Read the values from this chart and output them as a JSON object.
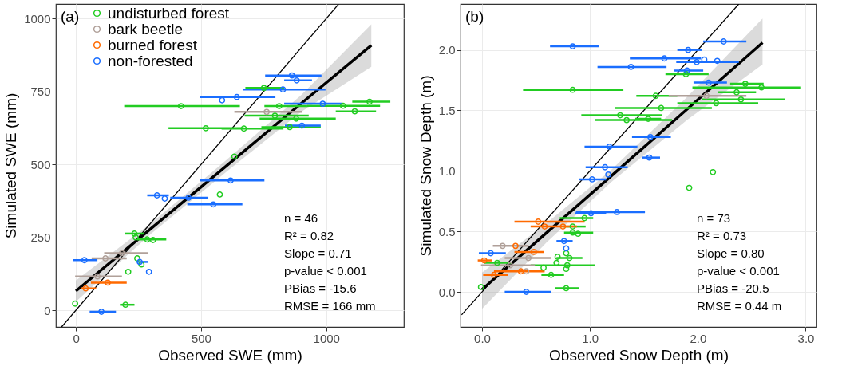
{
  "chart_data": [
    {
      "type": "scatter",
      "xlabel": "Observed SWE (mm)",
      "ylabel": "Simulated SWE (mm)",
      "xlim": [
        -80,
        1310
      ],
      "ylim": [
        -57,
        1050
      ],
      "xticks": [
        0,
        500,
        1000
      ],
      "yticks": [
        0,
        250,
        500,
        750,
        1000
      ],
      "grid": true,
      "legend": "top left",
      "marker": "circle",
      "annotations": [
        "(a)",
        "n = 46",
        "R² = 0.82",
        "Slope = 0.71",
        "p-value < 0.001",
        "PBias = -15.6",
        "RMSE = 166 mm"
      ],
      "series": [
        {
          "name": "undisturbed forest",
          "color": "#22cc22",
          "x": [
            751,
            420,
            812,
            1067,
            1173,
            1114,
            795,
            880,
            519,
            671,
            854,
            633,
            575,
            234,
            239,
            285,
            308,
            245,
            262,
            209,
            -3,
            198
          ],
          "values": [
            762,
            700,
            700,
            701,
            715,
            682,
            667,
            657,
            624,
            623,
            628,
            527,
            397,
            263,
            250,
            243,
            241,
            178,
            157,
            132,
            23,
            19
          ],
          "xerrors": [
            [
              677,
              832
            ],
            [
              193,
              655
            ],
            [
              753,
              924
            ],
            [
              924,
              1215
            ],
            [
              1104,
              1256
            ],
            [
              1038,
              1199
            ],
            [
              674,
              930
            ],
            [
              734,
              1038
            ],
            [
              370,
              671
            ],
            [
              582,
              829
            ],
            [
              741,
              978
            ],
            null,
            null,
            [
              197,
              271
            ],
            null,
            [
              245,
              361
            ],
            null,
            null,
            null,
            null,
            null,
            [
              176,
              234
            ]
          ]
        },
        {
          "name": "bark beetle",
          "color": "#b0a099",
          "x": [
            762,
            184,
            118,
            86
          ],
          "values": [
            680,
            196,
            178,
            116
          ],
          "xerrors": [
            [
              633,
              905
            ],
            [
              113,
              287
            ],
            [
              63,
              203
            ],
            [
              -3,
              184
            ]
          ]
        },
        {
          "name": "burned forest",
          "color": "#ff6a00",
          "x": [
            127,
            39
          ],
          "values": [
            95,
            75
          ],
          "xerrors": [
            [
              60,
              203
            ],
            [
              21,
              81
            ]
          ]
        },
        {
          "name": "non-forested",
          "color": "#1a6eff",
          "x": [
            863,
            882,
            827,
            643,
            584,
            986,
            903,
            618,
            324,
            355,
            450,
            549,
            34,
            255,
            292,
            102
          ],
          "values": [
            805,
            788,
            757,
            731,
            720,
            708,
            633,
            445,
            394,
            383,
            386,
            363,
            172,
            166,
            132,
            -5
          ],
          "xerrors": [
            [
              756,
              981
            ],
            [
              832,
              943
            ],
            [
              668,
              997
            ],
            [
              497,
              797
            ],
            null,
            [
              832,
              1063
            ],
            [
              835,
              978
            ],
            [
              496,
              753
            ],
            [
              285,
              371
            ],
            null,
            [
              377,
              529
            ],
            [
              445,
              665
            ],
            [
              -11,
              86
            ],
            [
              245,
              287
            ],
            null,
            [
              55,
              160
            ]
          ]
        },
        {
          "type": "line",
          "marker": "none",
          "color": "#000000",
          "x": [
            -57,
            1049
          ],
          "values": [
            -57,
            1049
          ]
        },
        {
          "type": "line",
          "marker": "none",
          "color": "#000000",
          "x": [
            0,
            300,
            600,
            900,
            1180
          ],
          "values": [
            66,
            280,
            494,
            709,
            908
          ],
          "lower": [
            30,
            262,
            474,
            680,
            835
          ],
          "upper": [
            102,
            298,
            514,
            738,
            980
          ]
        }
      ]
    },
    {
      "type": "scatter",
      "xlabel": "Observed Snow Depth (m)",
      "ylabel": "Simulated Snow Depth (m)",
      "xlim": [
        -0.2,
        3.1
      ],
      "ylim": [
        -0.29,
        2.38
      ],
      "xticks": [
        {
          "value": 0,
          "label": "0.0"
        },
        {
          "value": 1,
          "label": "1.0"
        },
        {
          "value": 2,
          "label": "2.0"
        },
        {
          "value": 3,
          "label": "3.0"
        }
      ],
      "yticks": [
        {
          "value": 0,
          "label": "0.0"
        },
        {
          "value": 0.5,
          "label": "0.5"
        },
        {
          "value": 1,
          "label": "1.0"
        },
        {
          "value": 1.5,
          "label": "1.5"
        },
        {
          "value": 2,
          "label": "2.0"
        }
      ],
      "grid": true,
      "marker": "circle",
      "annotations": [
        "(b)",
        "n = 73",
        "R² = 0.73",
        "Slope = 0.80",
        "p-value < 0.001",
        "PBias = -20.5",
        "RMSE = 0.44 m"
      ],
      "series": [
        {
          "color": "#22cc22",
          "x": [
            1.89,
            2.44,
            2.59,
            0.84,
            2.36,
            1.61,
            2.4,
            2.17,
            1.66,
            1.28,
            1.34,
            1.54,
            2.14,
            1.92,
            0.95,
            0.84,
            0.84,
            0.89,
            0.78,
            0.7,
            0.81,
            0.14,
            0.69,
            0.79,
            0.57,
            0.78,
            0.64,
            -0.01,
            0.78
          ],
          "values": [
            1.8,
            1.72,
            1.69,
            1.67,
            1.65,
            1.62,
            1.59,
            1.56,
            1.52,
            1.46,
            1.42,
            1.43,
            0.99,
            0.86,
            0.61,
            0.54,
            0.49,
            0.48,
            0.32,
            0.29,
            0.28,
            0.24,
            0.24,
            0.22,
            0.2,
            0.19,
            0.14,
            0.04,
            0.03
          ],
          "xerrors": [
            [
              1.7,
              2.1
            ],
            [
              2.3,
              2.61
            ],
            [
              1.95,
              2.95
            ],
            [
              0.38,
              1.31
            ],
            [
              2.19,
              2.54
            ],
            [
              1.43,
              1.81
            ],
            [
              2.04,
              2.81
            ],
            [
              1.81,
              2.56
            ],
            [
              1.23,
              2.13
            ],
            [
              0.92,
              1.67
            ],
            [
              1.05,
              1.76
            ],
            [
              1.42,
              1.66
            ],
            null,
            null,
            [
              0.72,
              1.03
            ],
            [
              0.75,
              0.96
            ],
            [
              0.76,
              1.03
            ],
            null,
            null,
            null,
            [
              0.69,
              0.93
            ],
            [
              0.02,
              0.28
            ],
            null,
            [
              0.45,
              1.05
            ],
            null,
            null,
            [
              0.55,
              0.76
            ],
            null,
            [
              0.68,
              0.9
            ]
          ]
        },
        {
          "color": "#b0a099",
          "x": [
            2.08,
            0.19,
            0.43,
            0.26,
            0.41
          ],
          "values": [
            1.62,
            0.38,
            0.28,
            0.22,
            0.17
          ],
          "xerrors": [
            [
              1.73,
              2.45
            ],
            [
              0.1,
              0.43
            ],
            [
              0.21,
              0.64
            ],
            [
              -0.01,
              0.49
            ],
            null
          ]
        },
        {
          "color": "#ff6a00",
          "x": [
            0.52,
            0.58,
            0.75,
            0.31,
            0.48,
            0.02,
            0.36,
            0.11
          ],
          "values": [
            0.58,
            0.54,
            0.54,
            0.38,
            0.33,
            0.26,
            0.17,
            0.14
          ],
          "xerrors": [
            [
              0.3,
              0.95
            ],
            [
              0.45,
              0.88
            ],
            null,
            null,
            [
              0.3,
              0.57
            ],
            [
              -0.04,
              0.09
            ],
            [
              0.11,
              0.58
            ],
            [
              0.01,
              0.24
            ]
          ]
        },
        {
          "color": "#1a6eff",
          "x": [
            0.84,
            2.24,
            1.91,
            1.69,
            1.99,
            2.06,
            2.18,
            1.38,
            1.9,
            2.1,
            1.56,
            1.18,
            1.55,
            1.14,
            1.17,
            1.02,
            1.25,
            1.01,
            0.76,
            0.78,
            0.08,
            0.41
          ],
          "values": [
            2.03,
            2.07,
            2.0,
            1.93,
            1.9,
            1.92,
            1.91,
            1.86,
            1.83,
            1.73,
            1.28,
            1.2,
            1.11,
            1.03,
            0.97,
            0.93,
            0.66,
            0.65,
            0.42,
            0.36,
            0.32,
            0.0
          ],
          "xerrors": [
            [
              0.63,
              1.08
            ],
            [
              2.05,
              2.45
            ],
            [
              1.81,
              2.04
            ],
            [
              1.37,
              2.03
            ],
            [
              1.8,
              2.38
            ],
            null,
            null,
            [
              1.07,
              1.71
            ],
            [
              1.78,
              2.05
            ],
            [
              1.96,
              2.27
            ],
            [
              1.39,
              1.75
            ],
            [
              0.95,
              1.44
            ],
            [
              1.48,
              1.65
            ],
            [
              0.96,
              1.35
            ],
            null,
            [
              0.9,
              1.15
            ],
            [
              0.87,
              1.51
            ],
            [
              0.86,
              1.15
            ],
            [
              0.69,
              0.84
            ],
            null,
            [
              -0.03,
              0.22
            ],
            [
              0.21,
              0.64
            ]
          ]
        },
        {
          "type": "line",
          "marker": "none",
          "color": "#000000",
          "x": [
            -0.19,
            2.38
          ],
          "values": [
            -0.19,
            2.38
          ]
        },
        {
          "type": "line",
          "marker": "none",
          "color": "#000000",
          "x": [
            0,
            0.6,
            1.2,
            1.9,
            2.6
          ],
          "values": [
            0.02,
            0.49,
            0.96,
            1.51,
            2.06
          ],
          "lower": [
            -0.14,
            0.41,
            0.91,
            1.42,
            1.88
          ],
          "upper": [
            0.16,
            0.57,
            1.01,
            1.61,
            2.26
          ]
        }
      ]
    }
  ]
}
